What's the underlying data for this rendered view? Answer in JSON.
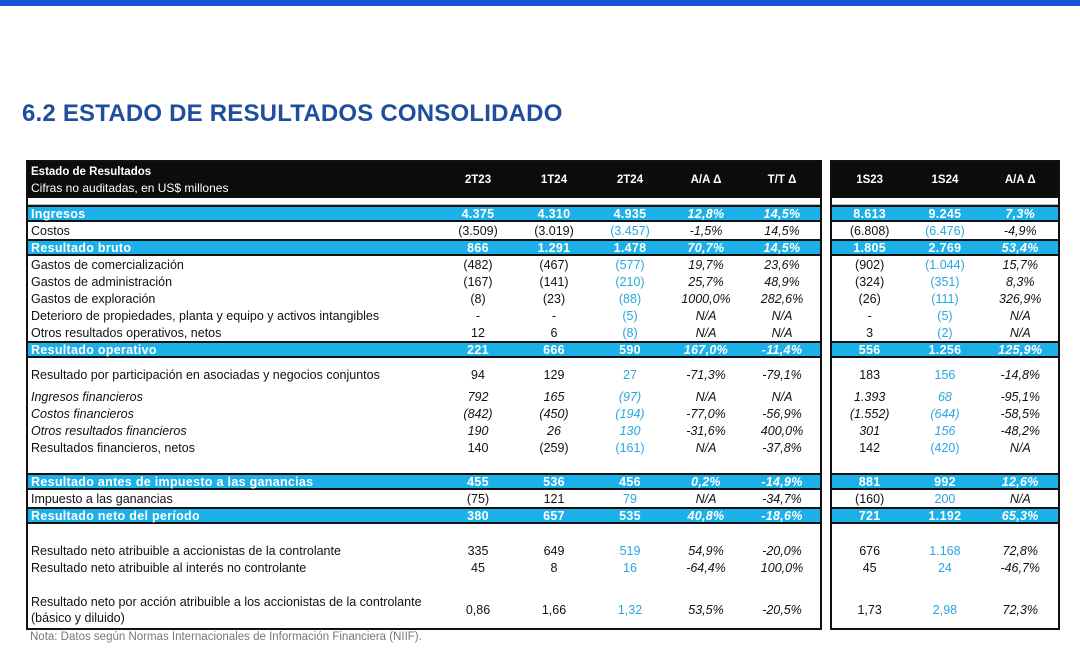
{
  "title": "6.2 ESTADO DE RESULTADOS CONSOLIDADO",
  "header": {
    "label": "Estado de Resultados",
    "sublabel": "Cifras no auditadas, en US$ millones",
    "left_columns": [
      "2T23",
      "1T24",
      "2T24",
      "A/A Δ",
      "T/T Δ"
    ],
    "right_columns": [
      "1S23",
      "1S24",
      "A/A Δ"
    ]
  },
  "rows": [
    {
      "kind": "hl",
      "label": "Ingresos",
      "left": [
        "4.375",
        "4.310",
        "4.935",
        "12,8%",
        "14,5%"
      ],
      "right": [
        "8.613",
        "9.245",
        "7,3%"
      ]
    },
    {
      "kind": "n",
      "label": "Costos",
      "left": [
        "(3.509)",
        "(3.019)",
        "(3.457)",
        "-1,5%",
        "14,5%"
      ],
      "right": [
        "(6.808)",
        "(6.476)",
        "-4,9%"
      ]
    },
    {
      "kind": "hl",
      "label": "Resultado bruto",
      "left": [
        "866",
        "1.291",
        "1.478",
        "70,7%",
        "14,5%"
      ],
      "right": [
        "1.805",
        "2.769",
        "53,4%"
      ]
    },
    {
      "kind": "n",
      "label": "Gastos de comercialización",
      "left": [
        "(482)",
        "(467)",
        "(577)",
        "19,7%",
        "23,6%"
      ],
      "right": [
        "(902)",
        "(1.044)",
        "15,7%"
      ]
    },
    {
      "kind": "n",
      "label": "Gastos de administración",
      "left": [
        "(167)",
        "(141)",
        "(210)",
        "25,7%",
        "48,9%"
      ],
      "right": [
        "(324)",
        "(351)",
        "8,3%"
      ]
    },
    {
      "kind": "n",
      "label": "Gastos de exploración",
      "left": [
        "(8)",
        "(23)",
        "(88)",
        "1000,0%",
        "282,6%"
      ],
      "right": [
        "(26)",
        "(111)",
        "326,9%"
      ]
    },
    {
      "kind": "n",
      "label": "Deterioro de propiedades, planta y equipo y activos intangibles",
      "left": [
        "-",
        "-",
        "(5)",
        "N/A",
        "N/A"
      ],
      "right": [
        "-",
        "(5)",
        "N/A"
      ]
    },
    {
      "kind": "n",
      "label": "Otros resultados operativos, netos",
      "left": [
        "12",
        "6",
        "(8)",
        "N/A",
        "N/A"
      ],
      "right": [
        "3",
        "(2)",
        "N/A"
      ]
    },
    {
      "kind": "hl",
      "label": "Resultado operativo",
      "left": [
        "221",
        "666",
        "590",
        "167,0%",
        "-11,4%"
      ],
      "right": [
        "556",
        "1.256",
        "125,9%"
      ]
    },
    {
      "kind": "sp"
    },
    {
      "kind": "n",
      "label": "Resultado por participación en asociadas y negocios conjuntos",
      "left": [
        "94",
        "129",
        "27",
        "-71,3%",
        "-79,1%"
      ],
      "right": [
        "183",
        "156",
        "-14,8%"
      ]
    },
    {
      "kind": "sp"
    },
    {
      "kind": "it",
      "label": "Ingresos financieros",
      "left": [
        "792",
        "165",
        "(97)",
        "N/A",
        "N/A"
      ],
      "right": [
        "1.393",
        "68",
        "-95,1%"
      ]
    },
    {
      "kind": "it",
      "label": "Costos financieros",
      "left": [
        "(842)",
        "(450)",
        "(194)",
        "-77,0%",
        "-56,9%"
      ],
      "right": [
        "(1.552)",
        "(644)",
        "-58,5%"
      ]
    },
    {
      "kind": "it",
      "label": "Otros resultados financieros",
      "left": [
        "190",
        "26",
        "130",
        "-31,6%",
        "400,0%"
      ],
      "right": [
        "301",
        "156",
        "-48,2%"
      ]
    },
    {
      "kind": "n",
      "label": "Resultados financieros, netos",
      "left": [
        "140",
        "(259)",
        "(161)",
        "N/A",
        "-37,8%"
      ],
      "right": [
        "142",
        "(420)",
        "N/A"
      ]
    },
    {
      "kind": "sp"
    },
    {
      "kind": "hl",
      "label": "Resultado antes de impuesto a las ganancias",
      "left": [
        "455",
        "536",
        "456",
        "0,2%",
        "-14,9%"
      ],
      "right": [
        "881",
        "992",
        "12,6%"
      ]
    },
    {
      "kind": "n",
      "label": "Impuesto a las ganancias",
      "left": [
        "(75)",
        "121",
        "79",
        "N/A",
        "-34,7%"
      ],
      "right": [
        "(160)",
        "200",
        "N/A"
      ]
    },
    {
      "kind": "hl",
      "label": "Resultado neto del período",
      "left": [
        "380",
        "657",
        "535",
        "40,8%",
        "-18,6%"
      ],
      "right": [
        "721",
        "1.192",
        "65,3%"
      ]
    },
    {
      "kind": "sp"
    },
    {
      "kind": "n",
      "label": "Resultado neto atribuible a accionistas de la controlante",
      "left": [
        "335",
        "649",
        "519",
        "54,9%",
        "-20,0%"
      ],
      "right": [
        "676",
        "1.168",
        "72,8%"
      ]
    },
    {
      "kind": "n",
      "label": "Resultado neto atribuible al interés no controlante",
      "left": [
        "45",
        "8",
        "16",
        "-64,4%",
        "100,0%"
      ],
      "right": [
        "45",
        "24",
        "-46,7%"
      ]
    },
    {
      "kind": "sp"
    },
    {
      "kind": "two",
      "label": "Resultado neto por acción atribuible a los accionistas de la controlante (básico y diluido)",
      "left": [
        "0,86",
        "1,66",
        "1,32",
        "53,5%",
        "-20,5%"
      ],
      "right": [
        "1,73",
        "2,98",
        "72,3%"
      ]
    }
  ],
  "note": "Nota: Datos según Normas Internacionales de Información Financiera (NIIF)."
}
